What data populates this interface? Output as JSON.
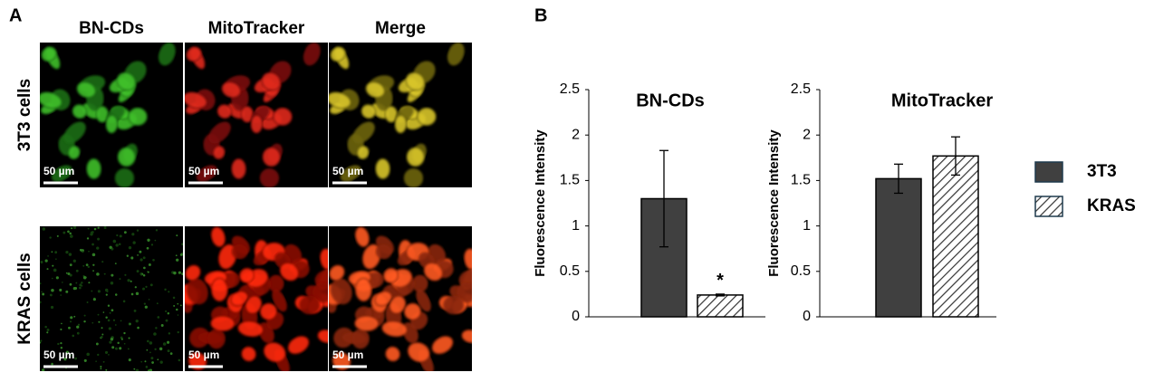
{
  "panel_a": {
    "label": "A",
    "columns": [
      "BN-CDs",
      "MitoTracker",
      "Merge"
    ],
    "rows": [
      "3T3 cells",
      "KRAS cells"
    ],
    "scale_bars": [
      [
        "50 µm",
        "50 µm",
        "50 µm"
      ],
      [
        "50 µm",
        "50 µm",
        "50 µm"
      ]
    ]
  },
  "panel_b": {
    "label": "B",
    "legend": [
      {
        "name": "3T3",
        "color": "#404040",
        "hatch": false
      },
      {
        "name": "KRAS",
        "color": "#ffffff",
        "hatch": true
      }
    ]
  },
  "chart_data": [
    {
      "type": "bar",
      "title": "BN-CDs",
      "y_label": "Fluorescence Intensity",
      "ylim": [
        0,
        2.5
      ],
      "yticks": [
        0,
        0.5,
        1,
        1.5,
        2,
        2.5
      ],
      "series": [
        {
          "values": [
            1.3
          ],
          "errors": [
            0.53
          ]
        },
        {
          "values": [
            0.24
          ],
          "errors": [
            0.01
          ],
          "annotations": [
            "*"
          ]
        }
      ]
    },
    {
      "type": "bar",
      "title": "MitoTracker",
      "y_label": "Fluorescence Intensity",
      "ylim": [
        0,
        2.5
      ],
      "yticks": [
        0,
        0.5,
        1,
        1.5,
        2,
        2.5
      ],
      "series": [
        {
          "values": [
            1.52
          ],
          "errors": [
            0.16
          ]
        },
        {
          "values": [
            1.77
          ],
          "errors": [
            0.21
          ]
        }
      ]
    }
  ]
}
